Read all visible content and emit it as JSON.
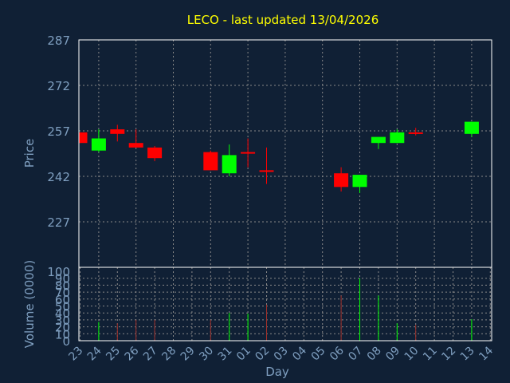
{
  "chart_data": {
    "type": "candlestick",
    "title": "LECO - last updated 13/04/2026",
    "colors": {
      "background": "#102035",
      "title": "#ffff00",
      "axis_text": "#7f9fc0",
      "frame": "#ffffff",
      "grid": "#888888",
      "up": "#00ff00",
      "down": "#ff0000",
      "volume_bar": "#a0302a"
    },
    "price_panel": {
      "ylabel": "Price",
      "ylim": [
        227,
        287
      ],
      "yticks": [
        227,
        242,
        257,
        272,
        287
      ],
      "grid": true
    },
    "volume_panel": {
      "ylabel": "Volume (0000)",
      "ylim": [
        0,
        100
      ],
      "yticks": [
        0,
        10,
        20,
        30,
        40,
        50,
        60,
        70,
        80,
        90,
        100
      ],
      "grid": true
    },
    "x_axis": {
      "xlabel": "Day",
      "ticks": [
        "23",
        "24",
        "25",
        "26",
        "27",
        "28",
        "29",
        "30",
        "31",
        "01",
        "02",
        "03",
        "04",
        "05",
        "06",
        "07",
        "08",
        "09",
        "10",
        "11",
        "12",
        "13",
        "14"
      ]
    },
    "candles": [
      {
        "day": "23",
        "open": 256.5,
        "close": 253.0,
        "high": 256.5,
        "low": 253.0
      },
      {
        "day": "24",
        "open": 250.5,
        "close": 254.5,
        "high": 257.5,
        "low": 250.0
      },
      {
        "day": "25",
        "open": 257.5,
        "close": 256.0,
        "high": 259.0,
        "low": 253.5
      },
      {
        "day": "26",
        "open": 253.0,
        "close": 251.5,
        "high": 257.5,
        "low": 251.5
      },
      {
        "day": "27",
        "open": 251.5,
        "close": 248.0,
        "high": 252.0,
        "low": 247.0
      },
      {
        "day": "30",
        "open": 250.0,
        "close": 244.0,
        "high": 250.5,
        "low": 244.0
      },
      {
        "day": "31",
        "open": 243.0,
        "close": 249.0,
        "high": 252.5,
        "low": 242.0
      },
      {
        "day": "01",
        "open": 250.0,
        "close": 250.0,
        "high": 254.5,
        "low": 245.0
      },
      {
        "day": "02",
        "open": 244.0,
        "close": 243.5,
        "high": 251.5,
        "low": 239.5
      },
      {
        "day": "06",
        "open": 243.0,
        "close": 238.5,
        "high": 245.0,
        "low": 237.0
      },
      {
        "day": "07",
        "open": 238.5,
        "close": 242.5,
        "high": 242.5,
        "low": 236.5
      },
      {
        "day": "08",
        "open": 253.0,
        "close": 255.0,
        "high": 255.0,
        "low": 251.0
      },
      {
        "day": "09",
        "open": 253.0,
        "close": 256.5,
        "high": 257.5,
        "low": 253.0
      },
      {
        "day": "10",
        "open": 256.5,
        "close": 256.0,
        "high": 258.0,
        "low": 255.5
      },
      {
        "day": "13",
        "open": 256.0,
        "close": 260.0,
        "high": 260.0,
        "low": 255.0
      }
    ],
    "volume": [
      {
        "day": "24",
        "value": 27
      },
      {
        "day": "25",
        "value": 25
      },
      {
        "day": "26",
        "value": 30
      },
      {
        "day": "27",
        "value": 30
      },
      {
        "day": "30",
        "value": 30
      },
      {
        "day": "31",
        "value": 40
      },
      {
        "day": "01",
        "value": 39
      },
      {
        "day": "02",
        "value": 52
      },
      {
        "day": "06",
        "value": 65
      },
      {
        "day": "07",
        "value": 90
      },
      {
        "day": "08",
        "value": 65
      },
      {
        "day": "09",
        "value": 25
      },
      {
        "day": "10",
        "value": 23
      },
      {
        "day": "13",
        "value": 31
      }
    ]
  }
}
